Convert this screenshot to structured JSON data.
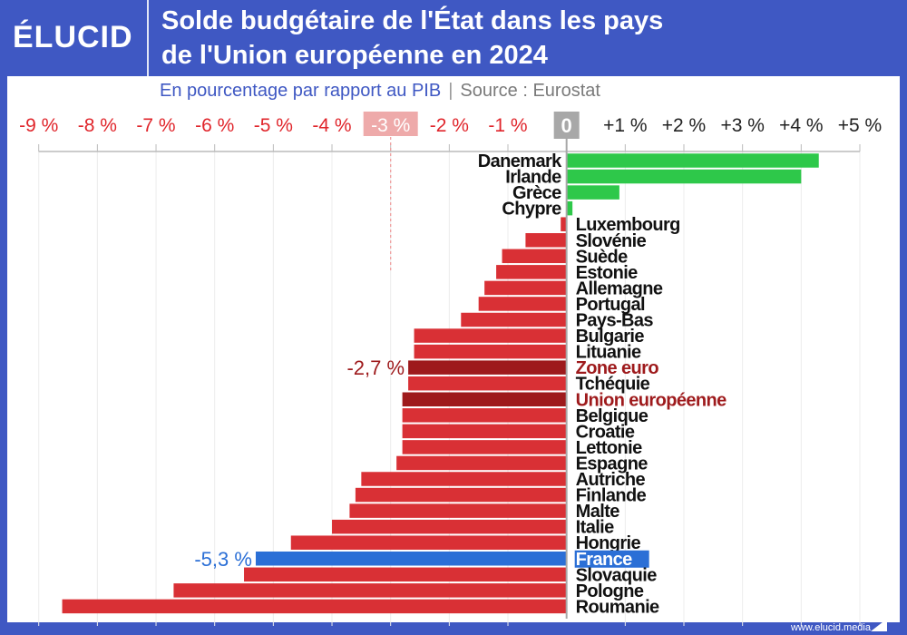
{
  "brand": {
    "logo": "ÉLUCID",
    "footer": "www.elucid.media"
  },
  "header": {
    "title_line1": "Solde budgétaire de l'État dans les pays",
    "title_line2": "de l'Union européenne en 2024"
  },
  "subtitle": {
    "text": "En pourcentage par rapport au PIB",
    "separator": "|",
    "source": "Source : Eurostat"
  },
  "colors": {
    "positive": "#2ec84a",
    "negative": "#d93035",
    "aggregate": "#9e1a1c",
    "highlight": "#2b6fd6",
    "frame": "#3f58c3",
    "negative_tick": "#e0252b",
    "reference_line": "#f0a0a0"
  },
  "chart_data": {
    "type": "bar",
    "orientation": "horizontal",
    "xlim": [
      -9,
      5
    ],
    "xticks": [
      -9,
      -8,
      -7,
      -6,
      -5,
      -4,
      -3,
      -2,
      -1,
      0,
      1,
      2,
      3,
      4,
      5
    ],
    "xtick_labels": [
      "-9 %",
      "-8 %",
      "-7 %",
      "-6 %",
      "-5 %",
      "-4 %",
      "-3 %",
      "-2 %",
      "-1 %",
      "0",
      "+1 %",
      "+2 %",
      "+3 %",
      "+4 %",
      "+5 %"
    ],
    "reference_line": {
      "value": -3,
      "label": "-3 %"
    },
    "grid": true,
    "categories": [
      "Danemark",
      "Irlande",
      "Grèce",
      "Chypre",
      "Luxembourg",
      "Slovénie",
      "Suède",
      "Estonie",
      "Allemagne",
      "Portugal",
      "Pays-Bas",
      "Bulgarie",
      "Lituanie",
      "Zone euro",
      "Tchéquie",
      "Union européenne",
      "Belgique",
      "Croatie",
      "Lettonie",
      "Espagne",
      "Autriche",
      "Finlande",
      "Malte",
      "Italie",
      "Hongrie",
      "France",
      "Slovaquie",
      "Pologne",
      "Roumanie"
    ],
    "values": [
      4.3,
      4.0,
      0.9,
      0.1,
      -0.1,
      -0.7,
      -1.1,
      -1.2,
      -1.4,
      -1.5,
      -1.8,
      -2.6,
      -2.6,
      -2.7,
      -2.7,
      -2.8,
      -2.8,
      -2.8,
      -2.8,
      -2.9,
      -3.5,
      -3.6,
      -3.7,
      -4.0,
      -4.7,
      -5.3,
      -5.5,
      -6.7,
      -8.6
    ],
    "aggregates": [
      "Zone euro",
      "Union européenne"
    ],
    "highlight": "France",
    "annotations": [
      {
        "category": "Zone euro",
        "label": "-2,7 %"
      },
      {
        "category": "France",
        "label": "-5,3 %"
      }
    ]
  }
}
